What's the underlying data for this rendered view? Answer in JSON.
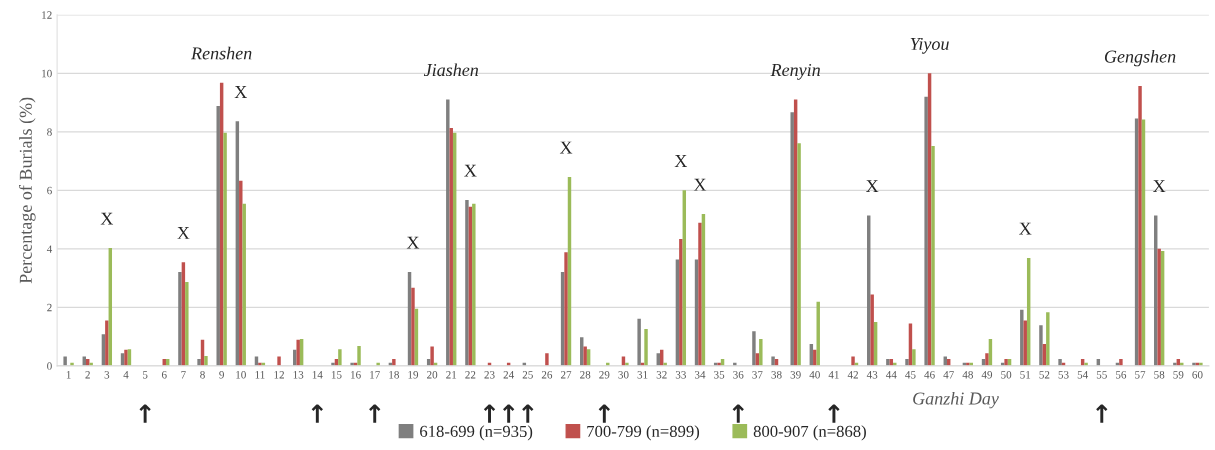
{
  "chart_data": {
    "type": "bar",
    "xlabel": "Ganzhi Day",
    "ylabel": "Percentage of Burials (%)",
    "categories": [
      "1",
      "2",
      "3",
      "4",
      "5",
      "6",
      "7",
      "8",
      "9",
      "10",
      "11",
      "12",
      "13",
      "14",
      "15",
      "16",
      "17",
      "18",
      "19",
      "20",
      "21",
      "22",
      "23",
      "24",
      "25",
      "26",
      "27",
      "28",
      "29",
      "30",
      "31",
      "32",
      "33",
      "34",
      "35",
      "36",
      "37",
      "38",
      "39",
      "40",
      "41",
      "42",
      "43",
      "44",
      "45",
      "46",
      "47",
      "48",
      "49",
      "50",
      "51",
      "52",
      "53",
      "54",
      "55",
      "56",
      "57",
      "58",
      "59",
      "60"
    ],
    "series": [
      {
        "name": "618-699 (n=935)",
        "color": "#7f7f7f",
        "values": [
          0.32,
          0.32,
          1.08,
          0.43,
          0,
          0,
          3.21,
          0.23,
          8.88,
          8.36,
          0.32,
          0,
          0.55,
          0,
          0.11,
          0.11,
          0,
          0.11,
          3.21,
          0.23,
          9.11,
          5.67,
          0,
          0,
          0.11,
          0,
          3.21,
          0.98,
          0,
          0,
          1.61,
          0.43,
          3.64,
          3.64,
          0.11,
          0.11,
          1.18,
          0.32,
          8.67,
          0.75,
          0,
          0,
          5.14,
          0.23,
          0.23,
          9.2,
          0.32,
          0.11,
          0.23,
          0.11,
          1.92,
          1.39,
          0.23,
          0,
          0.23,
          0.11,
          8.46,
          5.14,
          0.11,
          0.11
        ]
      },
      {
        "name": "700-799 (n=899)",
        "color": "#c0504d",
        "values": [
          0,
          0.23,
          1.55,
          0.55,
          0,
          0.23,
          3.54,
          0.89,
          9.68,
          6.33,
          0.11,
          0.32,
          0.89,
          0,
          0.23,
          0.11,
          0,
          0.23,
          2.67,
          0.66,
          8.13,
          5.44,
          0.11,
          0.11,
          0,
          0.43,
          3.88,
          0.66,
          0,
          0.32,
          0.11,
          0.55,
          4.34,
          4.89,
          0.11,
          0,
          0.43,
          0.23,
          9.11,
          0.55,
          0,
          0.32,
          2.44,
          0.23,
          1.45,
          10.0,
          0.23,
          0.11,
          0.43,
          0.23,
          1.55,
          0.75,
          0.11,
          0.23,
          0,
          0.23,
          9.57,
          4.0,
          0.23,
          0.11
        ]
      },
      {
        "name": "800-907 (n=868)",
        "color": "#9bbb59",
        "values": [
          0.11,
          0.11,
          4.03,
          0.57,
          0,
          0.23,
          2.87,
          0.34,
          7.97,
          5.54,
          0.11,
          0,
          0.92,
          0,
          0.57,
          0.68,
          0.11,
          0,
          1.95,
          0.11,
          7.97,
          5.54,
          0,
          0,
          0,
          0,
          6.46,
          0.57,
          0.11,
          0.11,
          1.26,
          0.11,
          6.0,
          5.19,
          0.23,
          0,
          0.92,
          0,
          7.61,
          2.19,
          0,
          0.11,
          1.5,
          0.11,
          0.57,
          7.52,
          0,
          0.11,
          0.92,
          0.23,
          3.69,
          1.83,
          0,
          0.11,
          0,
          0,
          8.42,
          3.93,
          0.11,
          0.11
        ]
      }
    ],
    "ylim": [
      0,
      12
    ],
    "yticks": [
      0,
      2,
      4,
      6,
      8,
      10,
      12
    ],
    "grid": "y",
    "legend": "bottom",
    "annotations": [
      {
        "text": "Renshen",
        "x": "9",
        "y": 9.68
      },
      {
        "text": "Jiashen",
        "x": "21",
        "y": 9.11
      },
      {
        "text": "Renyin",
        "x": "39",
        "y": 9.11
      },
      {
        "text": "Yiyou",
        "x": "46",
        "y": 10.0
      },
      {
        "text": "Gengshen",
        "x": "57",
        "y": 9.57
      },
      {
        "text": "X",
        "x": "3",
        "y": 4.03
      },
      {
        "text": "X",
        "x": "7",
        "y": 3.54
      },
      {
        "text": "X",
        "x": "10",
        "y": 8.36
      },
      {
        "text": "X",
        "x": "19",
        "y": 3.21
      },
      {
        "text": "X",
        "x": "22",
        "y": 5.67
      },
      {
        "text": "X",
        "x": "27",
        "y": 6.46
      },
      {
        "text": "X",
        "x": "33",
        "y": 6.0
      },
      {
        "text": "X",
        "x": "34",
        "y": 5.19
      },
      {
        "text": "X",
        "x": "43",
        "y": 5.14
      },
      {
        "text": "X",
        "x": "51",
        "y": 3.69
      },
      {
        "text": "X",
        "x": "58",
        "y": 5.14
      },
      {
        "text": "↑",
        "x": "5",
        "y": 0
      },
      {
        "text": "↑",
        "x": "14",
        "y": 0
      },
      {
        "text": "↑",
        "x": "17",
        "y": 0
      },
      {
        "text": "↑",
        "x": "23",
        "y": 0
      },
      {
        "text": "↑",
        "x": "24",
        "y": 0
      },
      {
        "text": "↑",
        "x": "25",
        "y": 0
      },
      {
        "text": "↑",
        "x": "29",
        "y": 0
      },
      {
        "text": "↑",
        "x": "36",
        "y": 0
      },
      {
        "text": "↑",
        "x": "41",
        "y": 0
      },
      {
        "text": "↑",
        "x": "55",
        "y": 0
      }
    ]
  }
}
